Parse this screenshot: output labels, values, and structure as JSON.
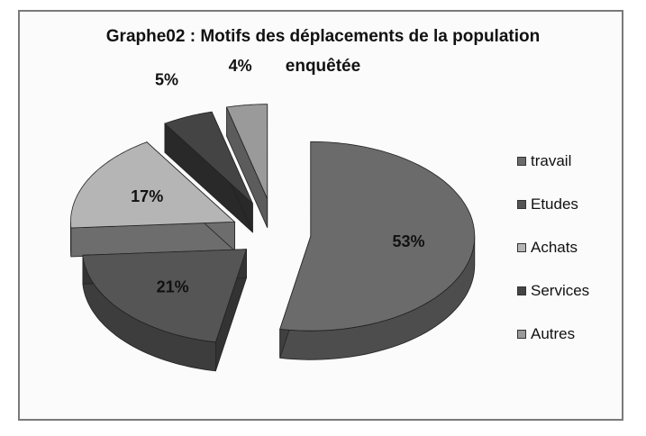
{
  "chart_data": {
    "type": "pie",
    "title": "Graphe02 : Motifs des déplacements de la population enquêtée",
    "title_lines": [
      "Graphe02 : Motifs des déplacements de la population",
      "enquêtée"
    ],
    "slices": [
      {
        "label": "travail",
        "value": 53,
        "display": "53%",
        "color": "#6b6b6b"
      },
      {
        "label": "Etudes",
        "value": 21,
        "display": "21%",
        "color": "#555555"
      },
      {
        "label": "Achats",
        "value": 17,
        "display": "17%",
        "color": "#b5b5b5"
      },
      {
        "label": "Services",
        "value": 5,
        "display": "5%",
        "color": "#444444"
      },
      {
        "label": "Autres",
        "value": 4,
        "display": "4%",
        "color": "#9a9a9a"
      }
    ],
    "legend_position": "right",
    "exploded": true,
    "style": "3d"
  }
}
